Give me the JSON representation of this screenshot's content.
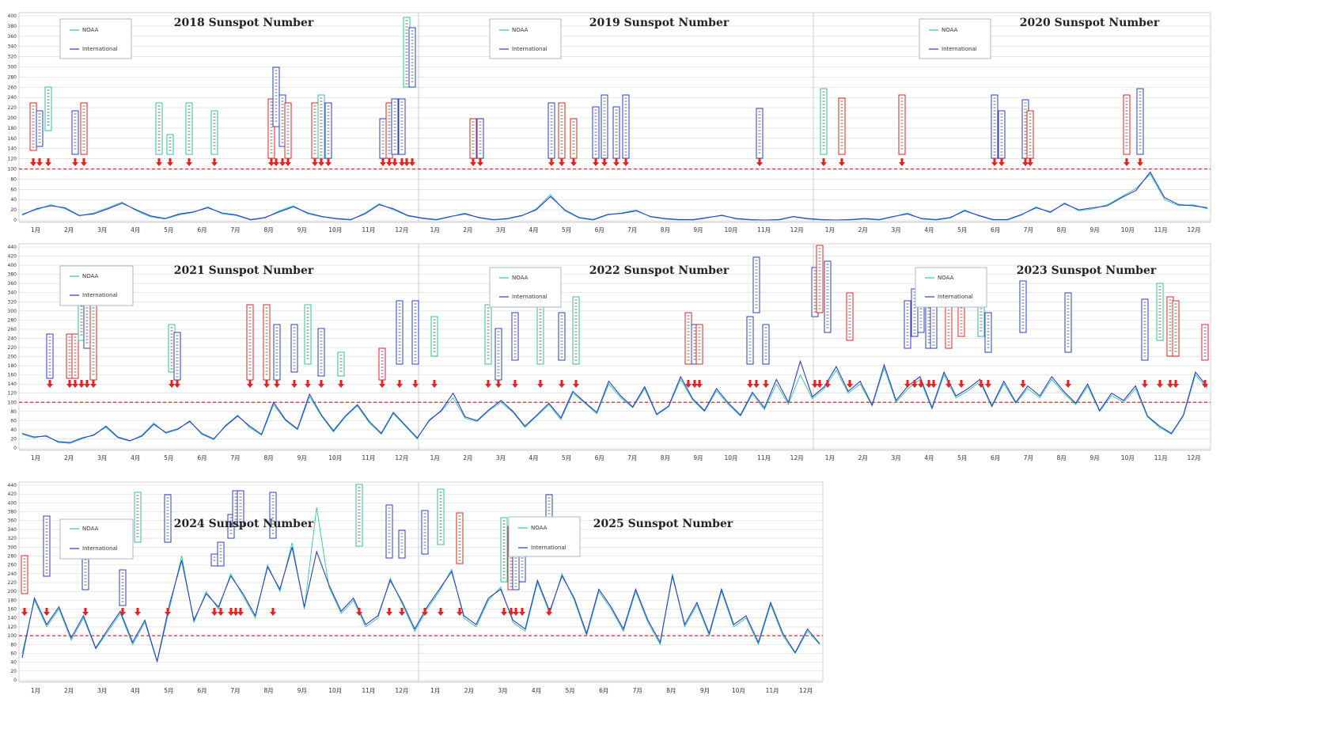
{
  "colors": {
    "noaa": "#2ec8a0",
    "international": "#2c3ccc",
    "threshold": "#e0242a",
    "event_box_red": "#e02020",
    "event_box_blue": "#2a3cc8",
    "event_box_green": "#30c090"
  },
  "legend": {
    "noaa": "NOAA",
    "international": "International"
  },
  "titles": {
    "y2018": "2018 Sunspot Number",
    "y2019": "2019 Sunspot Number",
    "y2020": "2020 Sunspot Number",
    "y2021": "2021 Sunspot Number",
    "y2022": "2022 Sunspot Number",
    "y2023": "2023 Sunspot Number",
    "y2024": "2024 Sunspot Number",
    "y2025": "2025 Sunspot Number"
  },
  "chart_data": [
    {
      "type": "line",
      "years": [
        "2018",
        "2019",
        "2020"
      ],
      "series": [
        {
          "name": "NOAA",
          "values": [
            12,
            20,
            30,
            22,
            8,
            14,
            24,
            35,
            18,
            6,
            2,
            10,
            15,
            26,
            12,
            9,
            0,
            4,
            18,
            28,
            12,
            6,
            2,
            0,
            14,
            32,
            20,
            8,
            3,
            0,
            6,
            14,
            4,
            0,
            2,
            8,
            22,
            50,
            18,
            4,
            0,
            10,
            14,
            20,
            6,
            2,
            0,
            0,
            4,
            10,
            2,
            0,
            0,
            0,
            6,
            2,
            0,
            0,
            0,
            2,
            0,
            6,
            14,
            2,
            0,
            4,
            20,
            8,
            0,
            0,
            10,
            26,
            14,
            34,
            18,
            22,
            30,
            46,
            62,
            90,
            40,
            28,
            30,
            22
          ]
        },
        {
          "name": "International",
          "values": [
            10,
            22,
            28,
            24,
            9,
            12,
            22,
            33,
            20,
            8,
            3,
            12,
            16,
            24,
            14,
            10,
            1,
            5,
            16,
            26,
            14,
            7,
            3,
            1,
            12,
            30,
            22,
            9,
            4,
            1,
            7,
            12,
            5,
            1,
            3,
            9,
            20,
            46,
            20,
            5,
            1,
            11,
            13,
            18,
            7,
            3,
            1,
            1,
            5,
            9,
            3,
            1,
            0,
            1,
            7,
            3,
            1,
            0,
            1,
            3,
            1,
            7,
            12,
            3,
            1,
            5,
            18,
            9,
            1,
            1,
            11,
            24,
            16,
            32,
            20,
            24,
            28,
            44,
            58,
            94,
            44,
            30,
            28,
            24
          ]
        }
      ],
      "y_ticks": [
        "400",
        "380",
        "360",
        "340",
        "320",
        "300",
        "280",
        "260",
        "240",
        "220",
        "200",
        "180",
        "160",
        "140",
        "120",
        "100",
        "80",
        "60",
        "40",
        "20",
        "0"
      ],
      "threshold": 100,
      "xlabels": [
        "1月",
        "2月",
        "3月",
        "4月",
        "5月",
        "6月",
        "7月",
        "8月",
        "9月",
        "10月",
        "11月",
        "12月"
      ],
      "grid": true,
      "legend_position": "top-left"
    },
    {
      "type": "line",
      "years": [
        "2021",
        "2022",
        "2023"
      ],
      "series": [
        {
          "name": "NOAA",
          "values": [
            30,
            22,
            28,
            12,
            10,
            20,
            30,
            45,
            22,
            15,
            28,
            55,
            32,
            40,
            60,
            30,
            18,
            50,
            72,
            45,
            28,
            95,
            60,
            40,
            112,
            70,
            35,
            68,
            92,
            55,
            30,
            75,
            48,
            20,
            62,
            80,
            110,
            65,
            58,
            82,
            100,
            78,
            45,
            70,
            95,
            62,
            120,
            98,
            75,
            140,
            110,
            88,
            130,
            72,
            90,
            150,
            105,
            80,
            125,
            95,
            70,
            118,
            84,
            140,
            96,
            160,
            108,
            130,
            170,
            120,
            140,
            92,
            175,
            100,
            130,
            150,
            85,
            160,
            110,
            125,
            145,
            90,
            140,
            98,
            130,
            110,
            150,
            120,
            95,
            135,
            80,
            115,
            100,
            130,
            68,
            45,
            30,
            70,
            160,
            130
          ]
        },
        {
          "name": "International",
          "values": [
            32,
            24,
            26,
            14,
            12,
            22,
            28,
            48,
            24,
            16,
            26,
            52,
            34,
            42,
            58,
            32,
            20,
            48,
            70,
            48,
            30,
            100,
            62,
            42,
            118,
            72,
            38,
            70,
            95,
            58,
            32,
            78,
            50,
            22,
            60,
            82,
            120,
            68,
            60,
            84,
            104,
            80,
            48,
            72,
            98,
            66,
            124,
            100,
            78,
            146,
            114,
            90,
            134,
            74,
            92,
            156,
            108,
            82,
            130,
            98,
            72,
            122,
            88,
            150,
            100,
            190,
            112,
            134,
            178,
            124,
            146,
            94,
            182,
            104,
            136,
            156,
            88,
            166,
            114,
            130,
            150,
            92,
            146,
            100,
            136,
            114,
            156,
            124,
            98,
            140,
            82,
            120,
            104,
            136,
            70,
            48,
            32,
            72,
            166,
            134
          ]
        }
      ],
      "y_ticks": [
        "440",
        "420",
        "400",
        "380",
        "360",
        "340",
        "320",
        "300",
        "280",
        "260",
        "240",
        "220",
        "200",
        "180",
        "160",
        "140",
        "120",
        "100",
        "80",
        "60",
        "40",
        "20",
        "0"
      ],
      "threshold": 100,
      "xlabels": [
        "1月",
        "2月",
        "3月",
        "4月",
        "5月",
        "6月",
        "7月",
        "8月",
        "9月",
        "10月",
        "11月",
        "12月"
      ],
      "grid": true,
      "legend_position": "top-left"
    },
    {
      "type": "line",
      "years": [
        "2024",
        "2025"
      ],
      "series": [
        {
          "name": "NOAA",
          "values": [
            60,
            180,
            120,
            160,
            90,
            140,
            70,
            110,
            150,
            80,
            130,
            40,
            160,
            280,
            130,
            200,
            160,
            240,
            190,
            140,
            260,
            200,
            310,
            160,
            390,
            210,
            150,
            180,
            120,
            140,
            230,
            170,
            110,
            160,
            200,
            250,
            140,
            120,
            180,
            210,
            130,
            110,
            220,
            150,
            240,
            180,
            100,
            200,
            160,
            110,
            200,
            130,
            80,
            240,
            120,
            170,
            100,
            200,
            120,
            140,
            80,
            170,
            100,
            60,
            110,
            80
          ]
        },
        {
          "name": "International",
          "values": [
            50,
            185,
            125,
            165,
            95,
            145,
            72,
            115,
            155,
            85,
            135,
            42,
            170,
            270,
            135,
            195,
            165,
            235,
            195,
            145,
            255,
            205,
            300,
            165,
            290,
            215,
            155,
            185,
            125,
            145,
            225,
            175,
            115,
            165,
            205,
            245,
            145,
            125,
            185,
            205,
            135,
            115,
            225,
            155,
            235,
            185,
            105,
            205,
            165,
            115,
            205,
            135,
            85,
            235,
            125,
            175,
            105,
            205,
            125,
            145,
            85,
            175,
            105,
            62,
            115,
            82
          ]
        }
      ],
      "y_ticks": [
        "440",
        "420",
        "400",
        "380",
        "360",
        "340",
        "320",
        "300",
        "280",
        "260",
        "240",
        "220",
        "200",
        "180",
        "160",
        "140",
        "120",
        "100",
        "80",
        "60",
        "40",
        "20",
        "0"
      ],
      "threshold": 100,
      "xlabels": [
        "1月",
        "2月",
        "3月",
        "4月",
        "5月",
        "6月",
        "7月",
        "8月",
        "9月",
        "10月",
        "11月",
        "12月"
      ],
      "grid": true,
      "legend_position": "top-left"
    }
  ]
}
